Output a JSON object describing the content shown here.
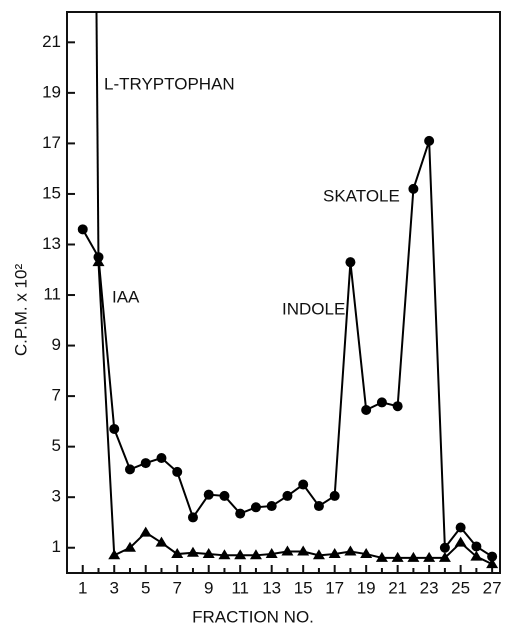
{
  "chart_data": {
    "type": "line",
    "xlabel": "FRACTION NO.",
    "ylabel": "C.P.M. x 10²",
    "x": [
      1,
      2,
      3,
      4,
      5,
      6,
      7,
      8,
      9,
      10,
      11,
      12,
      13,
      14,
      15,
      16,
      17,
      18,
      19,
      20,
      21,
      22,
      23,
      24,
      25,
      26,
      27
    ],
    "series": [
      {
        "marker": "circle",
        "color": "#000000",
        "values": [
          13.6,
          12.5,
          5.7,
          4.1,
          4.35,
          4.55,
          4.0,
          2.2,
          3.1,
          3.05,
          2.35,
          2.6,
          2.65,
          3.05,
          3.5,
          2.65,
          3.05,
          12.3,
          6.45,
          6.75,
          6.6,
          15.2,
          17.1,
          1.0,
          1.8,
          1.05,
          0.65
        ]
      },
      {
        "marker": "triangle",
        "color": "#000000",
        "values": [
          null,
          12.3,
          0.7,
          1.0,
          1.6,
          1.2,
          0.75,
          0.8,
          0.75,
          0.7,
          0.7,
          0.7,
          0.75,
          0.85,
          0.85,
          0.7,
          0.75,
          0.85,
          0.75,
          0.6,
          0.6,
          0.6,
          0.6,
          0.6,
          1.2,
          0.65,
          0.35
        ]
      }
    ],
    "annotations": [
      "L-TRYPTOPHAN",
      "IAA",
      "INDOLE",
      "SKATOLE"
    ],
    "xlim": [
      0,
      27.5
    ],
    "ylim": [
      0,
      22.2
    ],
    "xticks": [
      1,
      3,
      5,
      7,
      9,
      11,
      13,
      15,
      17,
      19,
      21,
      23,
      25,
      27
    ],
    "yticks": [
      1,
      3,
      5,
      7,
      9,
      11,
      13,
      15,
      17,
      19,
      21
    ]
  }
}
